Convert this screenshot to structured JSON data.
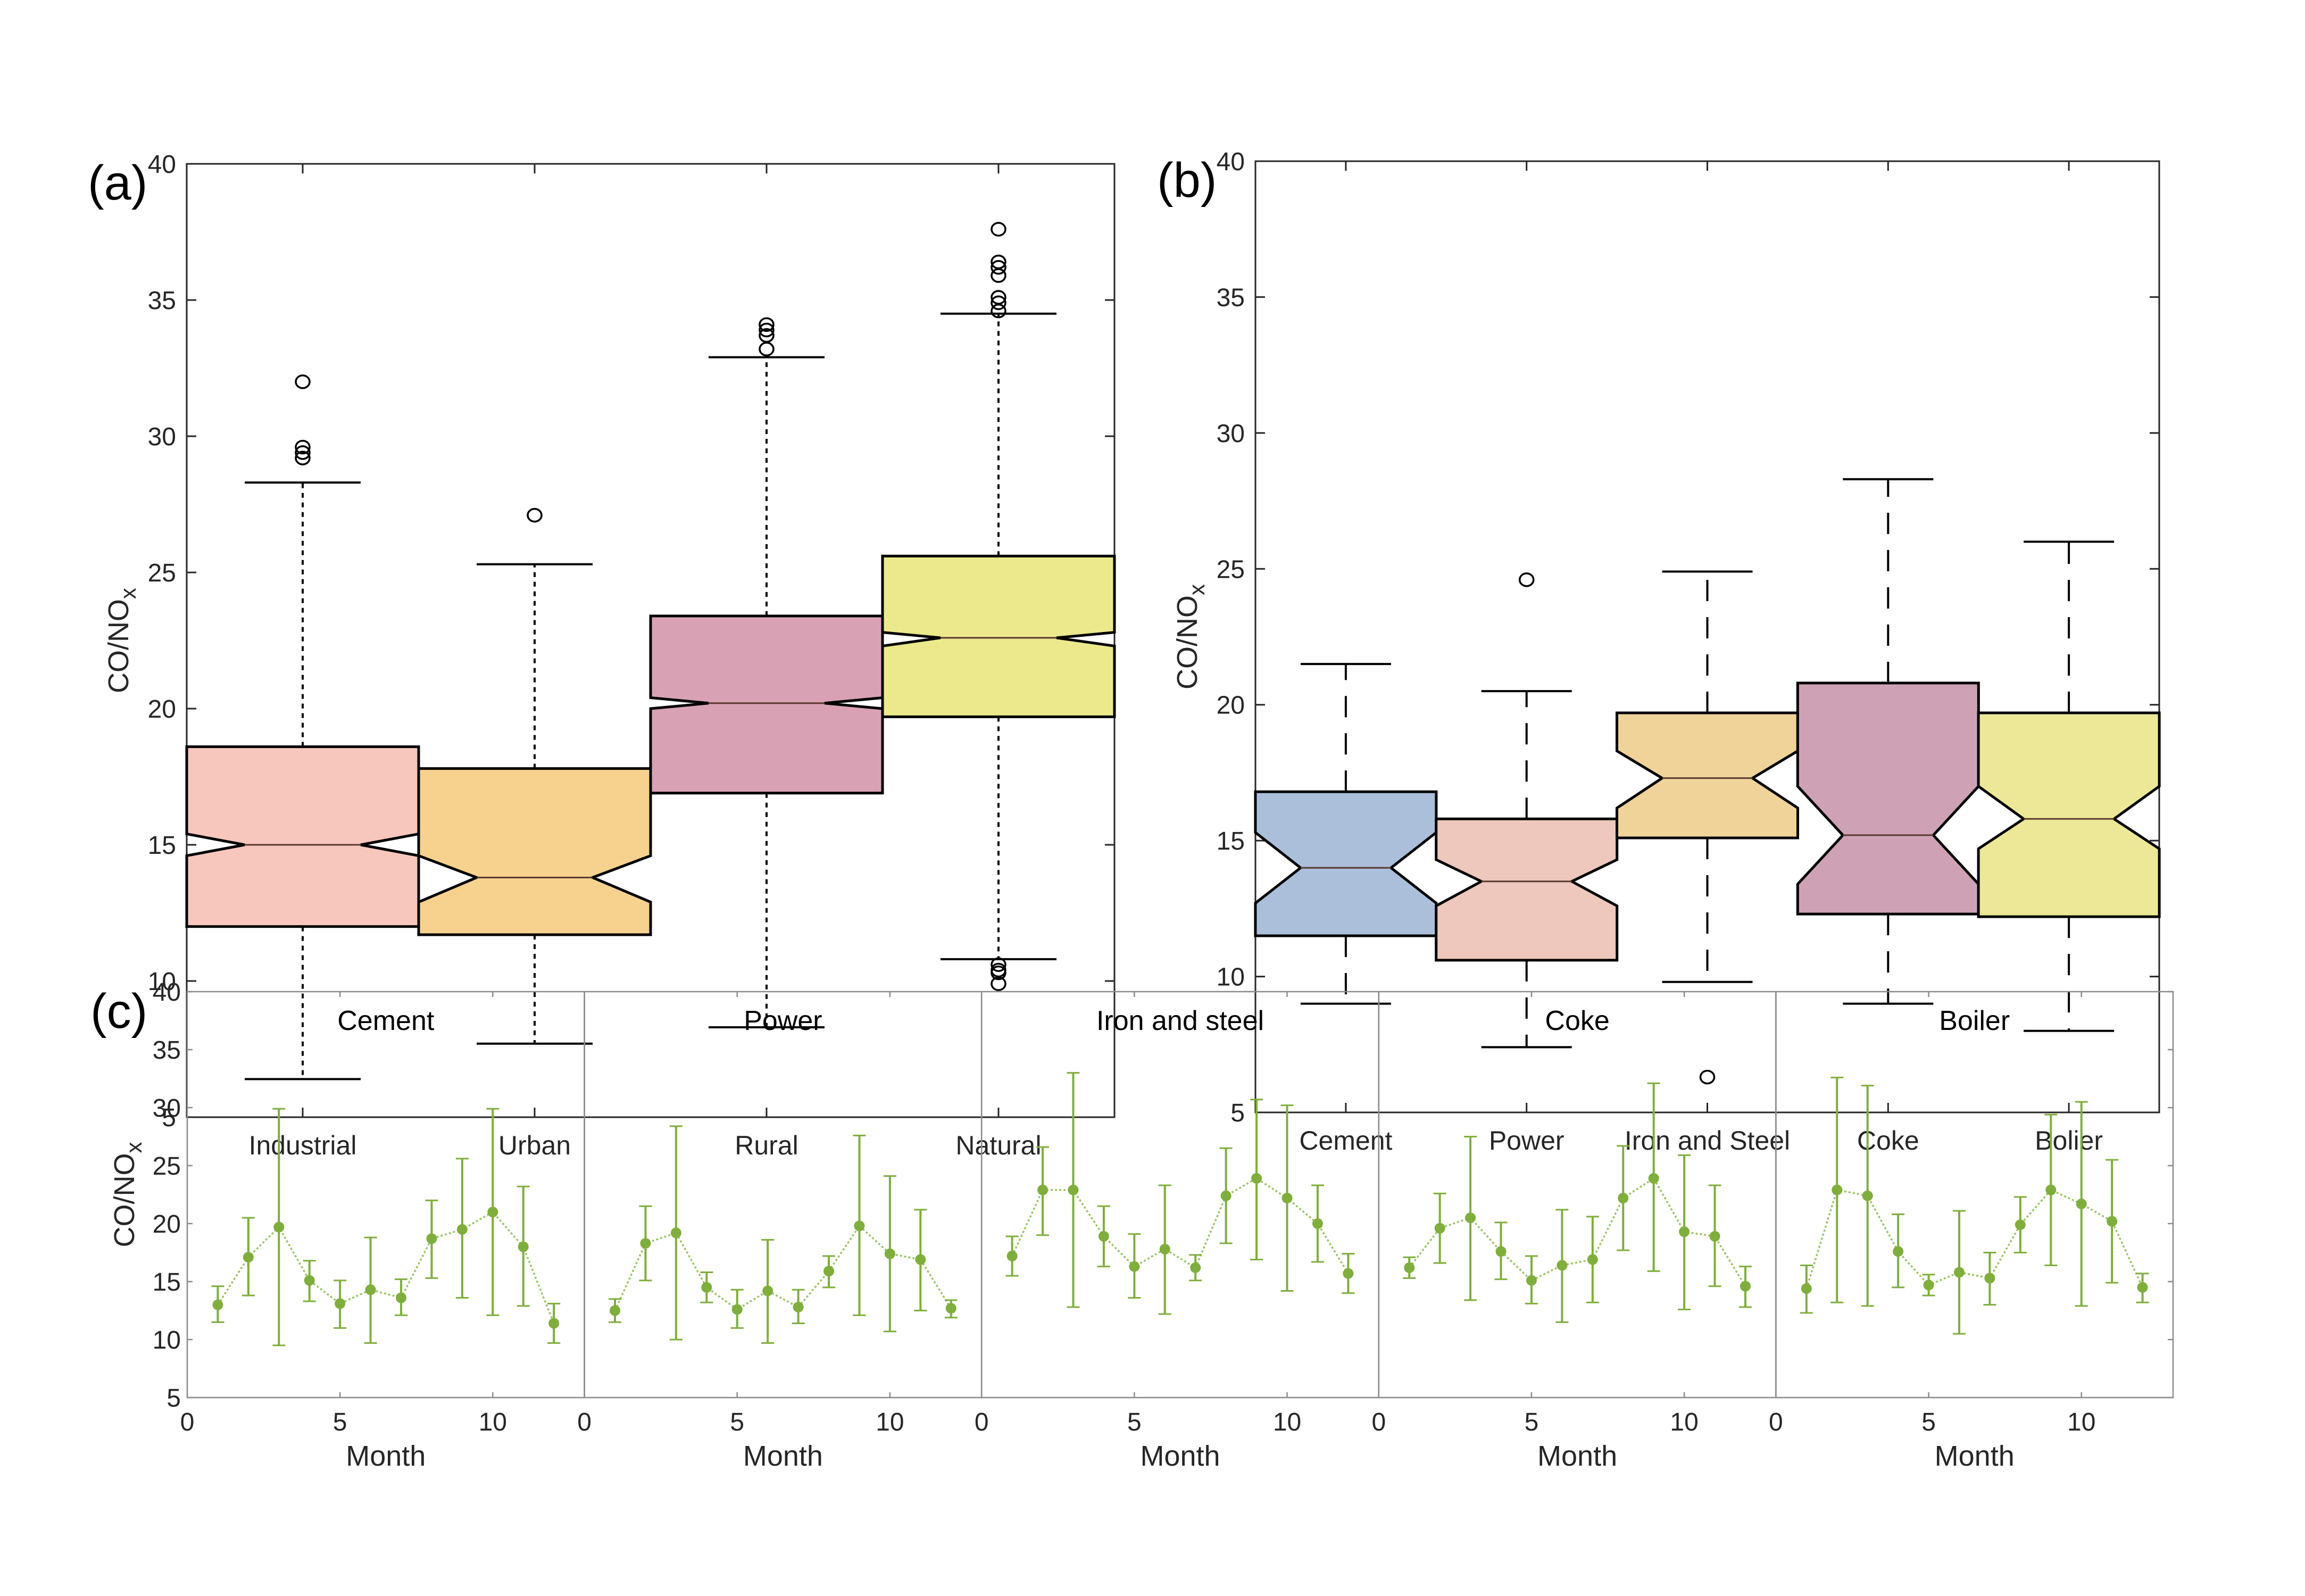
{
  "chart_data": [
    {
      "panel": "(a)",
      "type": "boxplot",
      "notched": true,
      "ylabel": "CO/NO",
      "ylabel_subscript": "x",
      "ylim": [
        5,
        40
      ],
      "yticks": [
        5,
        10,
        15,
        20,
        25,
        30,
        35,
        40
      ],
      "whisker_style": "dotted",
      "categories": [
        "Industrial",
        "Urban",
        "Rural",
        "Natural"
      ],
      "boxes": [
        {
          "name": "Industrial",
          "color": "#F7C6BD",
          "whisker_low": 6.4,
          "q1": 12.0,
          "median": 15.0,
          "q3": 18.6,
          "whisker_high": 28.3,
          "notch_low": 14.6,
          "notch_high": 15.4,
          "outliers": [
            32.0,
            29.6,
            29.4,
            29.2
          ]
        },
        {
          "name": "Urban",
          "color": "#F7D28E",
          "whisker_low": 7.7,
          "q1": 11.7,
          "median": 13.8,
          "q3": 17.8,
          "whisker_high": 25.3,
          "notch_low": 12.9,
          "notch_high": 14.6,
          "outliers": [
            27.1
          ]
        },
        {
          "name": "Rural",
          "color": "#D8A2B4",
          "whisker_low": 8.3,
          "q1": 16.9,
          "median": 20.2,
          "q3": 23.4,
          "whisker_high": 32.9,
          "notch_low": 20.0,
          "notch_high": 20.4,
          "outliers": [
            34.1,
            33.9,
            33.7,
            33.2
          ]
        },
        {
          "name": "Natural",
          "color": "#ECE98C",
          "whisker_low": 10.8,
          "q1": 19.7,
          "median": 22.6,
          "q3": 25.6,
          "whisker_high": 34.5,
          "notch_low": 22.3,
          "notch_high": 22.8,
          "outliers": [
            37.6,
            36.4,
            36.2,
            35.9,
            35.1,
            34.9,
            34.6,
            10.6,
            10.4,
            10.3,
            9.9
          ]
        }
      ]
    },
    {
      "panel": "(b)",
      "type": "boxplot",
      "notched": true,
      "ylabel": "CO/NO",
      "ylabel_subscript": "x",
      "ylim": [
        5,
        40
      ],
      "yticks": [
        5,
        10,
        15,
        20,
        25,
        30,
        35,
        40
      ],
      "whisker_style": "dashed",
      "categories": [
        "Cement",
        "Power",
        "Iron and Steel",
        "Coke",
        "Bolier"
      ],
      "boxes": [
        {
          "name": "Cement",
          "color": "#ABBFDB",
          "whisker_low": 9.0,
          "q1": 11.5,
          "median": 14.0,
          "q3": 16.8,
          "whisker_high": 21.5,
          "notch_low": 12.7,
          "notch_high": 15.3,
          "outliers": []
        },
        {
          "name": "Power",
          "color": "#EEC8BD",
          "whisker_low": 7.4,
          "q1": 10.6,
          "median": 13.5,
          "q3": 15.8,
          "whisker_high": 20.5,
          "notch_low": 12.6,
          "notch_high": 14.3,
          "outliers": [
            24.6
          ]
        },
        {
          "name": "Iron and Steel",
          "color": "#EFD398",
          "whisker_low": 9.8,
          "q1": 15.1,
          "median": 17.3,
          "q3": 19.7,
          "whisker_high": 24.9,
          "notch_low": 16.2,
          "notch_high": 18.3,
          "outliers": [
            6.3
          ]
        },
        {
          "name": "Coke",
          "color": "#CEA2B4",
          "whisker_low": 9.0,
          "q1": 12.3,
          "median": 15.2,
          "q3": 20.8,
          "whisker_high": 28.3,
          "notch_low": 13.4,
          "notch_high": 17.0,
          "outliers": []
        },
        {
          "name": "Bolier",
          "color": "#ECE897",
          "whisker_low": 8.0,
          "q1": 12.2,
          "median": 15.8,
          "q3": 19.7,
          "whisker_high": 26.0,
          "notch_low": 14.7,
          "notch_high": 17.0,
          "outliers": []
        }
      ]
    },
    {
      "panel": "(c)",
      "type": "line",
      "style": "errorbar",
      "color": "#7FAE3C",
      "ylabel": "CO/NO",
      "ylabel_subscript": "x",
      "xlabel": "Month",
      "ylim": [
        5,
        40
      ],
      "xlim": [
        0,
        13
      ],
      "yticks": [
        5,
        10,
        15,
        20,
        25,
        30,
        35,
        40
      ],
      "xticks": [
        0,
        5,
        10
      ],
      "x": [
        1,
        2,
        3,
        4,
        5,
        6,
        7,
        8,
        9,
        10,
        11,
        12
      ],
      "series": [
        {
          "name": "Cement",
          "values": [
            13.0,
            17.1,
            19.7,
            15.1,
            13.1,
            14.3,
            13.6,
            18.7,
            19.5,
            21.0,
            18.0,
            11.4
          ],
          "upper": [
            14.6,
            20.5,
            29.9,
            16.8,
            15.1,
            18.8,
            15.2,
            22.0,
            25.6,
            29.9,
            23.2,
            13.1
          ],
          "lower": [
            11.5,
            13.8,
            9.5,
            13.3,
            11.0,
            9.7,
            12.1,
            15.3,
            13.6,
            12.1,
            12.9,
            9.7
          ]
        },
        {
          "name": "Power",
          "values": [
            12.5,
            18.3,
            19.2,
            14.5,
            12.6,
            14.2,
            12.8,
            15.9,
            19.8,
            17.4,
            16.9,
            12.7
          ],
          "upper": [
            13.5,
            21.5,
            28.4,
            15.8,
            14.3,
            18.6,
            14.3,
            17.2,
            27.6,
            24.1,
            21.2,
            13.4
          ],
          "lower": [
            11.5,
            15.1,
            10.0,
            13.2,
            11.0,
            9.7,
            11.4,
            14.5,
            12.1,
            10.7,
            12.5,
            11.9
          ]
        },
        {
          "name": "Iron and steel",
          "values": [
            17.2,
            22.9,
            22.9,
            18.9,
            16.3,
            17.8,
            16.2,
            22.4,
            23.9,
            22.2,
            20.0,
            15.7
          ],
          "upper": [
            18.9,
            26.6,
            33.0,
            21.5,
            19.1,
            23.3,
            17.3,
            26.5,
            30.7,
            30.2,
            23.3,
            17.4
          ],
          "lower": [
            15.5,
            19.0,
            12.8,
            16.3,
            13.6,
            12.2,
            15.1,
            18.3,
            16.9,
            14.2,
            16.7,
            14.0
          ]
        },
        {
          "name": "Coke",
          "values": [
            16.2,
            19.6,
            20.5,
            17.6,
            15.1,
            16.4,
            16.9,
            22.2,
            23.9,
            19.3,
            18.9,
            14.6
          ],
          "upper": [
            17.1,
            22.6,
            27.5,
            20.1,
            17.2,
            21.2,
            20.6,
            26.7,
            32.1,
            25.9,
            23.3,
            16.3
          ],
          "lower": [
            15.3,
            16.6,
            13.4,
            15.2,
            13.1,
            11.5,
            13.2,
            17.7,
            15.9,
            12.6,
            14.6,
            12.8
          ]
        },
        {
          "name": "Boiler",
          "values": [
            14.4,
            22.9,
            22.4,
            17.6,
            14.7,
            15.8,
            15.3,
            19.9,
            22.9,
            21.7,
            20.2,
            14.5
          ],
          "upper": [
            16.4,
            32.6,
            31.9,
            20.8,
            15.6,
            21.1,
            17.5,
            22.3,
            29.4,
            30.5,
            25.5,
            15.7
          ],
          "lower": [
            12.3,
            13.2,
            12.9,
            14.5,
            13.8,
            10.5,
            13.0,
            17.5,
            16.4,
            12.9,
            14.9,
            13.2
          ]
        }
      ]
    }
  ]
}
